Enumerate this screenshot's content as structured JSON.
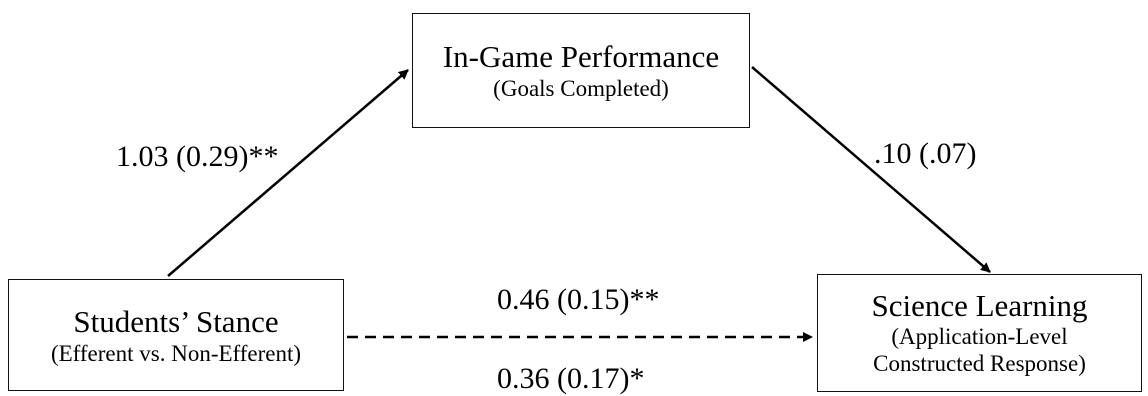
{
  "nodes": {
    "mediator": {
      "title": "In-Game Performance",
      "subtitle": "(Goals Completed)"
    },
    "predictor": {
      "title": "Students’ Stance",
      "subtitle": "(Efferent vs. Non-Efferent)"
    },
    "outcome": {
      "title": "Science Learning",
      "subtitle_line1": "(Application-Level",
      "subtitle_line2": "Constructed Response)"
    }
  },
  "paths": {
    "a": "1.03 (0.29)**",
    "b": ".10 (.07)",
    "c": "0.46 (0.15)**",
    "c_prime": "0.36 (0.17)*"
  }
}
